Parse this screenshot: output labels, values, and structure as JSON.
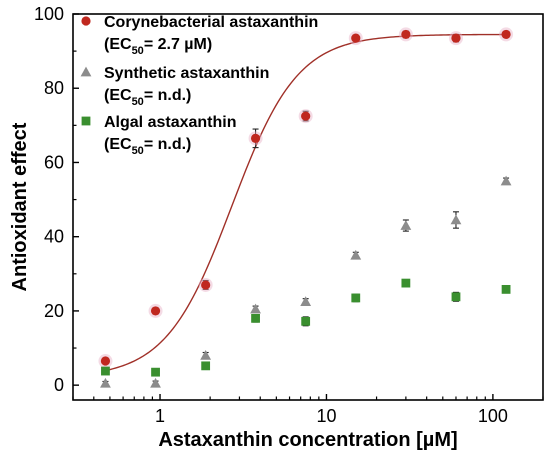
{
  "chart_data": {
    "type": "scatter",
    "xscale": "log",
    "xlabel": "Astaxanthin concentration [µM]",
    "ylabel": "Antioxidant effect",
    "xlim": [
      0.3,
      200
    ],
    "ylim": [
      -4,
      100
    ],
    "x_ticks": [
      1,
      10,
      100
    ],
    "x_tick_labels": [
      "1",
      "10",
      "100"
    ],
    "y_ticks": [
      0,
      20,
      40,
      60,
      80,
      100
    ],
    "y_tick_labels": [
      "0",
      "20",
      "40",
      "60",
      "80",
      "100"
    ],
    "grid": false,
    "legend_position": "top-left",
    "series": [
      {
        "name": "Corynebacterial astaxanthin",
        "name_line2_prefix": "(EC",
        "name_line2_sub": "50",
        "name_line2_suffix": "= 2.7 µM)",
        "color": "#c0281f",
        "marker": "circle",
        "x": [
          0.47,
          0.94,
          1.88,
          3.75,
          7.5,
          15,
          30,
          60,
          120
        ],
        "y": [
          6.5,
          20,
          27,
          66.5,
          72.5,
          93.5,
          94.5,
          93.5,
          94.5
        ],
        "err": [
          0.6,
          0.8,
          1.2,
          2.5,
          1.3,
          0.8,
          0.9,
          1.0,
          0.8
        ]
      },
      {
        "name": "Synthetic astaxanthin",
        "name_line2_prefix": "(EC",
        "name_line2_sub": "50",
        "name_line2_suffix": "= n.d.)",
        "color": "#8c8c8c",
        "marker": "triangle",
        "x": [
          0.47,
          0.94,
          1.88,
          3.75,
          7.5,
          15,
          30,
          60,
          120
        ],
        "y": [
          0.5,
          0.5,
          8,
          20.5,
          22.5,
          35,
          43,
          44.5,
          55
        ],
        "err": [
          0.5,
          0.6,
          0.8,
          0.8,
          0.8,
          0.8,
          1.5,
          2.2,
          0.8
        ]
      },
      {
        "name": "Algal astaxanthin",
        "name_line2_prefix": "(EC",
        "name_line2_sub": "50",
        "name_line2_suffix": "= n.d.)",
        "color": "#3a8f2f",
        "marker": "square",
        "x": [
          0.47,
          0.94,
          1.88,
          3.75,
          7.5,
          15,
          30,
          60,
          120
        ],
        "y": [
          3.8,
          3.5,
          5.2,
          18,
          17.2,
          23.5,
          27.5,
          23.8,
          25.8
        ],
        "err": [
          0.4,
          0.4,
          0.5,
          1.0,
          1.2,
          1.0,
          0.8,
          1.2,
          0.8
        ]
      }
    ],
    "fit_curve": {
      "series": "Corynebacterial astaxanthin",
      "model": "sigmoidal dose-response (log EC50)",
      "bottom": 2,
      "top": 94.5,
      "ec50": 2.7,
      "hill": 2.2,
      "x_start": 0.47,
      "x_end": 120,
      "color": "#a03028"
    }
  }
}
